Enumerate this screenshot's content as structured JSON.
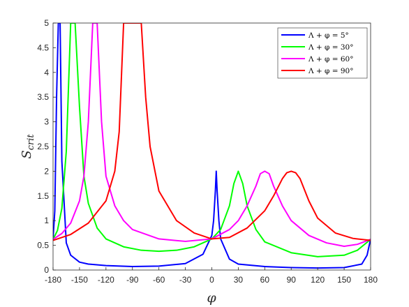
{
  "chart_data": {
    "type": "line",
    "xlabel": "φ",
    "ylabel": "S",
    "ylabel_sub": "crit",
    "xlim": [
      -180,
      180
    ],
    "ylim": [
      0,
      5
    ],
    "xticks": [
      "-180",
      "-150",
      "-120",
      "-90",
      "-60",
      "-30",
      "0",
      "30",
      "60",
      "90",
      "120",
      "150",
      "180"
    ],
    "yticks": [
      "0",
      "0.5",
      "1",
      "1.5",
      "2",
      "2.5",
      "3",
      "3.5",
      "4",
      "4.5",
      "5"
    ],
    "grid": false,
    "legend_position": "top-right",
    "series": [
      {
        "name": "Λ + φ = 5°",
        "color": "#0000ff",
        "sum_deg": 5,
        "x": [
          -180,
          -178,
          -176,
          -174,
          -172,
          -170,
          -165,
          -160,
          -150,
          -140,
          -120,
          -90,
          -60,
          -30,
          -10,
          0,
          2,
          4,
          5,
          6,
          8,
          10,
          20,
          30,
          60,
          90,
          120,
          150,
          170,
          176,
          180
        ],
        "y": [
          0.63,
          1.2,
          3.5,
          5,
          5,
          2.2,
          0.55,
          0.3,
          0.16,
          0.12,
          0.09,
          0.07,
          0.08,
          0.13,
          0.32,
          0.7,
          1.0,
          1.6,
          2.0,
          1.6,
          1.0,
          0.63,
          0.22,
          0.12,
          0.07,
          0.05,
          0.04,
          0.05,
          0.12,
          0.3,
          0.63
        ]
      },
      {
        "name": "Λ + φ = 30°",
        "color": "#00ff00",
        "sum_deg": 30,
        "x": [
          -180,
          -175,
          -170,
          -165,
          -160,
          -155,
          -150,
          -145,
          -140,
          -130,
          -120,
          -100,
          -80,
          -60,
          -40,
          -20,
          0,
          10,
          20,
          25,
          30,
          35,
          40,
          50,
          60,
          90,
          120,
          150,
          165,
          180
        ],
        "y": [
          0.62,
          0.8,
          1.25,
          2.4,
          5,
          5,
          3.3,
          1.9,
          1.35,
          0.85,
          0.63,
          0.47,
          0.4,
          0.38,
          0.4,
          0.47,
          0.63,
          0.82,
          1.3,
          1.75,
          2.0,
          1.75,
          1.3,
          0.82,
          0.57,
          0.35,
          0.27,
          0.3,
          0.4,
          0.62
        ]
      },
      {
        "name": "Λ + φ = 60°",
        "color": "#ff00ff",
        "sum_deg": 60,
        "x": [
          -180,
          -170,
          -160,
          -150,
          -145,
          -140,
          -135,
          -130,
          -125,
          -120,
          -110,
          -100,
          -90,
          -60,
          -30,
          0,
          20,
          30,
          40,
          50,
          55,
          60,
          65,
          70,
          80,
          90,
          110,
          130,
          150,
          165,
          180
        ],
        "y": [
          0.62,
          0.74,
          0.95,
          1.4,
          1.9,
          3.0,
          5,
          5,
          3.0,
          1.9,
          1.3,
          1.0,
          0.82,
          0.63,
          0.58,
          0.63,
          0.82,
          1.0,
          1.3,
          1.7,
          1.95,
          2.0,
          1.95,
          1.7,
          1.3,
          1.0,
          0.7,
          0.55,
          0.48,
          0.52,
          0.62
        ]
      },
      {
        "name": "Λ + φ = 90°",
        "color": "#ff0000",
        "sum_deg": 90,
        "x": [
          -180,
          -160,
          -140,
          -120,
          -110,
          -105,
          -100,
          -95,
          -90,
          -85,
          -80,
          -75,
          -70,
          -60,
          -40,
          -20,
          0,
          20,
          40,
          60,
          70,
          80,
          85,
          90,
          95,
          100,
          110,
          120,
          140,
          160,
          180
        ],
        "y": [
          0.6,
          0.72,
          0.95,
          1.4,
          2.0,
          2.8,
          5,
          5,
          5,
          5,
          5,
          3.5,
          2.5,
          1.6,
          1.0,
          0.75,
          0.63,
          0.66,
          0.85,
          1.2,
          1.5,
          1.85,
          1.97,
          2.0,
          1.97,
          1.85,
          1.4,
          1.05,
          0.75,
          0.64,
          0.6
        ]
      }
    ]
  }
}
